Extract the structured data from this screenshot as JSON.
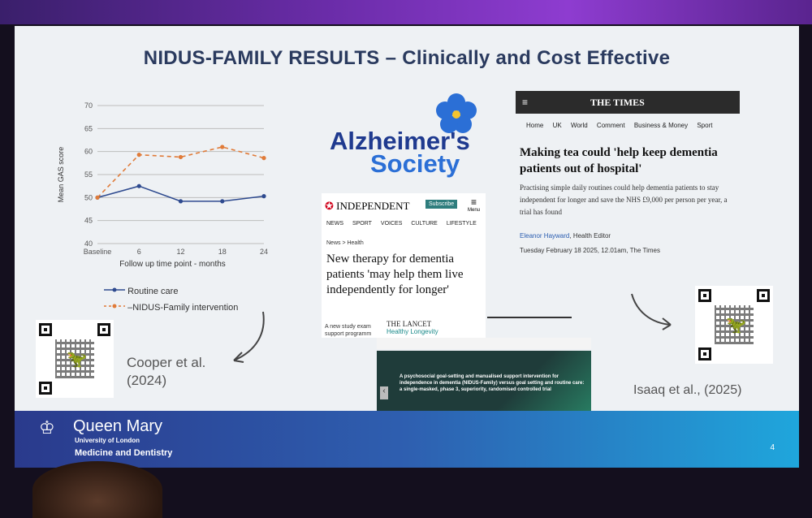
{
  "slide": {
    "title": "NIDUS-FAMILY RESULTS – Clinically and Cost Effective",
    "page_number": "4"
  },
  "chart_data": {
    "type": "line",
    "xlabel": "Follow up time point - months",
    "ylabel": "Mean GAS score",
    "categories": [
      "Baseline",
      "6",
      "12",
      "18",
      "24"
    ],
    "ylim": [
      40,
      70
    ],
    "yticks": [
      40,
      45,
      50,
      55,
      60,
      65,
      70
    ],
    "grid": true,
    "legend_position": "bottom",
    "series": [
      {
        "name": "Routine care",
        "values": [
          50,
          52.5,
          49.2,
          49.2,
          50.3
        ],
        "color": "#2e4a8f",
        "dashed": false
      },
      {
        "name": "NIDUS-Family intervention",
        "values": [
          50,
          59.3,
          58.8,
          61,
          58.6
        ],
        "color": "#e07b39",
        "dashed": true
      }
    ]
  },
  "citations": {
    "left": "Cooper et al.\n(2024)",
    "right": "Isaaq et al., (2025)"
  },
  "alzheimers": {
    "line1": "Alzheimer's",
    "line2": "Society"
  },
  "independent": {
    "masthead": "INDEPENDENT",
    "subscribe": "Subscribe",
    "menu": "Menu",
    "nav": [
      "NEWS",
      "SPORT",
      "VOICES",
      "CULTURE",
      "LIFESTYLE"
    ],
    "section": "News > Health",
    "headline": "New therapy for dementia patients 'may help them live independently for longer'",
    "teaser": "A new study exam support programm"
  },
  "times": {
    "masthead": "THE TIMES",
    "nav": [
      "Home",
      "UK",
      "World",
      "Comment",
      "Business & Money",
      "Sport"
    ],
    "headline": "Making tea could 'help keep dementia patients out of hospital'",
    "standfirst": "Practising simple daily routines could help dementia patients to stay independent for longer and save the NHS £9,000 per person per year, a trial has found",
    "author": "Eleanor Hayward",
    "author_role": ", Health Editor",
    "dateline": "Tuesday February 18 2025, 12.01am, The Times"
  },
  "lancet": {
    "masthead": "THE LANCET",
    "sub": "Healthy Longevity",
    "title": "A psychosocial goal-setting and manualised support intervention for independence in dementia (NIDUS-Family) versus goal setting and routine care: a single-masked, phase 3, superiority, randomised controlled trial"
  },
  "footer": {
    "org_name": "Queen Mary",
    "org_sub1": "University of London",
    "org_sub2": "Medicine and Dentistry"
  }
}
